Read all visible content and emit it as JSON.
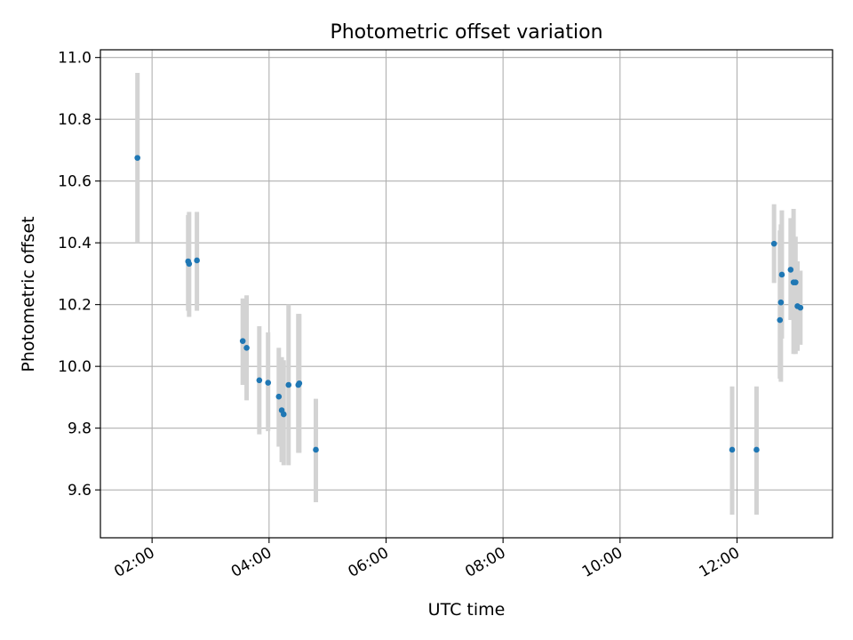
{
  "chart_data": {
    "type": "scatter",
    "title": "Photometric offset variation",
    "xlabel": "UTC time",
    "ylabel": "Photometric offset",
    "grid": true,
    "xlim": [
      "01:07",
      "13:38"
    ],
    "ylim": [
      9.445,
      11.025
    ],
    "xticks": [
      "02:00",
      "04:00",
      "06:00",
      "08:00",
      "10:00",
      "12:00"
    ],
    "yticks": [
      "9.6",
      "9.8",
      "10.0",
      "10.2",
      "10.4",
      "10.6",
      "10.8",
      "11.0"
    ],
    "colors": {
      "points": "#1f77b4",
      "errorbars": "#d3d3d3",
      "grid": "#b0b0b0"
    },
    "points": [
      {
        "t": "01:45",
        "y": 10.675,
        "lo": 10.4,
        "hi": 10.95
      },
      {
        "t": "02:37",
        "y": 10.34,
        "lo": 10.18,
        "hi": 10.49
      },
      {
        "t": "02:38",
        "y": 10.332,
        "lo": 10.16,
        "hi": 10.5
      },
      {
        "t": "02:46",
        "y": 10.343,
        "lo": 10.18,
        "hi": 10.5
      },
      {
        "t": "03:33",
        "y": 10.082,
        "lo": 9.94,
        "hi": 10.22
      },
      {
        "t": "03:37",
        "y": 10.06,
        "lo": 9.89,
        "hi": 10.23
      },
      {
        "t": "03:50",
        "y": 9.955,
        "lo": 9.78,
        "hi": 10.13
      },
      {
        "t": "03:59",
        "y": 9.947,
        "lo": 9.79,
        "hi": 10.11
      },
      {
        "t": "04:10",
        "y": 9.902,
        "lo": 9.74,
        "hi": 10.06
      },
      {
        "t": "04:13",
        "y": 9.858,
        "lo": 9.69,
        "hi": 10.03
      },
      {
        "t": "04:15",
        "y": 9.845,
        "lo": 9.68,
        "hi": 10.02
      },
      {
        "t": "04:20",
        "y": 9.94,
        "lo": 9.68,
        "hi": 10.2
      },
      {
        "t": "04:30",
        "y": 9.94,
        "lo": 9.72,
        "hi": 10.17
      },
      {
        "t": "04:31",
        "y": 9.945,
        "lo": 9.72,
        "hi": 10.17
      },
      {
        "t": "04:48",
        "y": 9.73,
        "lo": 9.56,
        "hi": 9.895
      },
      {
        "t": "11:55",
        "y": 9.73,
        "lo": 9.52,
        "hi": 9.935
      },
      {
        "t": "12:20",
        "y": 9.73,
        "lo": 9.52,
        "hi": 9.935
      },
      {
        "t": "12:38",
        "y": 10.397,
        "lo": 10.27,
        "hi": 10.525
      },
      {
        "t": "12:44",
        "y": 10.15,
        "lo": 9.96,
        "hi": 10.44
      },
      {
        "t": "12:45",
        "y": 10.207,
        "lo": 9.95,
        "hi": 10.46
      },
      {
        "t": "12:46",
        "y": 10.297,
        "lo": 10.09,
        "hi": 10.505
      },
      {
        "t": "12:55",
        "y": 10.313,
        "lo": 10.15,
        "hi": 10.48
      },
      {
        "t": "12:58",
        "y": 10.272,
        "lo": 10.04,
        "hi": 10.51
      },
      {
        "t": "13:00",
        "y": 10.272,
        "lo": 10.04,
        "hi": 10.42
      },
      {
        "t": "13:02",
        "y": 10.195,
        "lo": 10.05,
        "hi": 10.34
      },
      {
        "t": "13:05",
        "y": 10.19,
        "lo": 10.07,
        "hi": 10.31
      }
    ]
  }
}
